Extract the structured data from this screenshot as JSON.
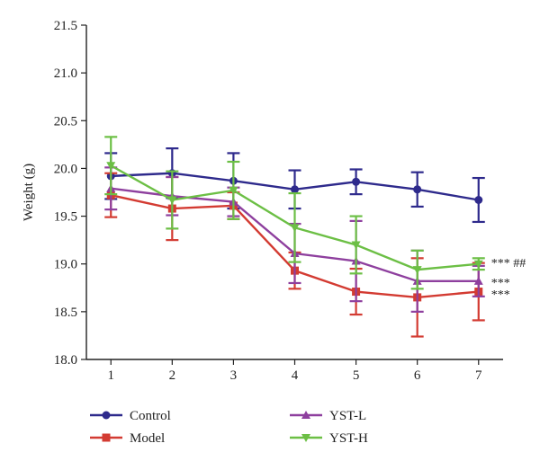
{
  "chart_data": {
    "type": "line",
    "title": "",
    "xlabel": "",
    "ylabel": "Weight (g)",
    "x": [
      1,
      2,
      3,
      4,
      5,
      6,
      7
    ],
    "xlim": [
      0.6,
      7.4
    ],
    "ylim": [
      18.0,
      21.5
    ],
    "yticks": [
      18.0,
      18.5,
      19.0,
      19.5,
      20.0,
      20.5,
      21.0,
      21.5
    ],
    "ytick_labels": [
      "18.0",
      "18.5",
      "19.0",
      "19.5",
      "20.0",
      "20.5",
      "21.0",
      "21.5"
    ],
    "xtick_labels": [
      "1",
      "2",
      "3",
      "4",
      "5",
      "6",
      "7"
    ],
    "grid": false,
    "legend_position": "bottom",
    "series": [
      {
        "name": "Control",
        "color": "#2e2a8c",
        "marker": "circle",
        "values": [
          19.92,
          19.95,
          19.87,
          19.78,
          19.86,
          19.78,
          19.67
        ],
        "errors": [
          0.24,
          0.26,
          0.29,
          0.2,
          0.13,
          0.18,
          0.23
        ]
      },
      {
        "name": "Model",
        "color": "#d33b32",
        "marker": "square",
        "values": [
          19.72,
          19.58,
          19.61,
          18.93,
          18.71,
          18.65,
          18.71
        ],
        "errors": [
          0.23,
          0.33,
          0.14,
          0.19,
          0.24,
          0.41,
          0.3
        ]
      },
      {
        "name": "YST-L",
        "color": "#8e3f9e",
        "marker": "triangle-up",
        "values": [
          19.79,
          19.71,
          19.65,
          19.11,
          19.03,
          18.82,
          18.82
        ],
        "errors": [
          0.22,
          0.2,
          0.15,
          0.31,
          0.42,
          0.32,
          0.16
        ]
      },
      {
        "name": "YST-H",
        "color": "#6cbf45",
        "marker": "triangle-down",
        "values": [
          20.03,
          19.67,
          19.77,
          19.38,
          19.2,
          18.94,
          19.0
        ],
        "errors": [
          0.3,
          0.3,
          0.3,
          0.36,
          0.3,
          0.2,
          0.06
        ]
      }
    ],
    "annotations": [
      {
        "text": "*** ##",
        "series": "YST-H",
        "x": 7,
        "y": 18.98
      },
      {
        "text": "***",
        "series": "YST-L",
        "x": 7,
        "y": 18.81
      },
      {
        "text": "***",
        "series": "Model",
        "x": 7,
        "y": 18.68
      }
    ]
  }
}
